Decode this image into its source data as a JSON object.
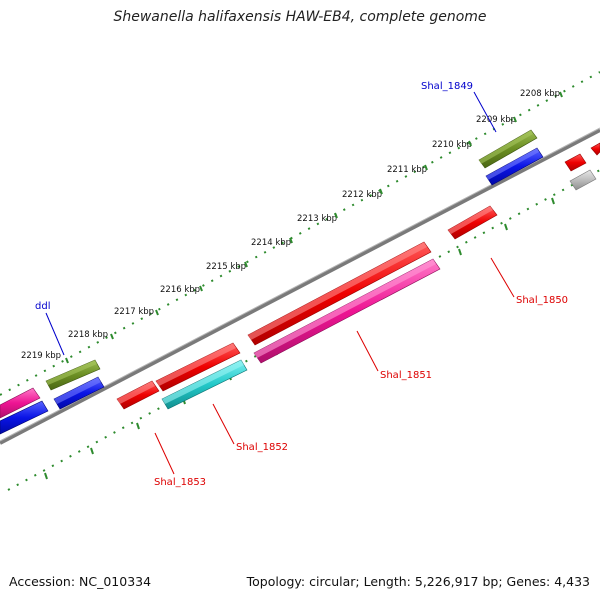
{
  "title": "Shewanella halifaxensis HAW-EB4, complete genome",
  "footer": {
    "accession": "Accession: NC_010334",
    "topology": "Topology: circular; Length: 5,226,917 bp; Genes: 4,433"
  },
  "kbp_labels": [
    "2208 kbp",
    "2209 kbp",
    "2210 kbp",
    "2211 kbp",
    "2212 kbp",
    "2213 kbp",
    "2214 kbp",
    "2215 kbp",
    "2216 kbp",
    "2217 kbp",
    "2218 kbp",
    "2219 kbp"
  ],
  "gene_labels": {
    "shal_1849": "Shal_1849",
    "ddl": "ddl",
    "shal_1850": "Shal_1850",
    "shal_1851": "Shal_1851",
    "shal_1852": "Shal_1852",
    "shal_1853": "Shal_1853"
  },
  "colors": {
    "backbone": "#7a7a7a",
    "tick": "#2e8b2e",
    "red": "#ee0000",
    "magenta": "#ee1493",
    "cyan": "#22c8c8",
    "olive": "#6b8e23",
    "blue": "#0a14e6",
    "gray": "#bdbdbd",
    "label_red": "#dd0000",
    "label_blue": "#0000cc"
  }
}
